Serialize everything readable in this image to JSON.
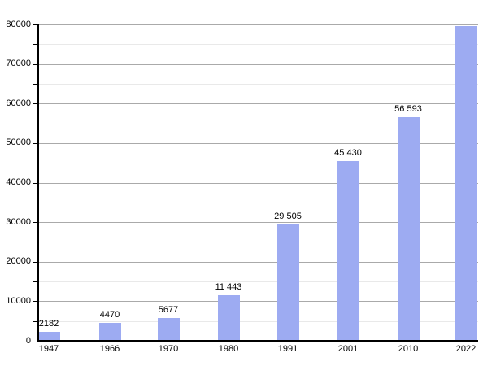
{
  "chart_data": {
    "type": "bar",
    "title": "",
    "xlabel": "",
    "ylabel": "",
    "categories": [
      "1947",
      "1966",
      "1970",
      "1980",
      "1991",
      "2001",
      "2010",
      "2022"
    ],
    "values": [
      2182,
      4470,
      5677,
      11443,
      29505,
      45430,
      56593,
      79500
    ],
    "bar_labels": [
      "2182",
      "4470",
      "5677",
      "11 443",
      "29 505",
      "45 430",
      "56 593",
      ""
    ],
    "ylim": [
      0,
      80000
    ],
    "y_major_step": 10000,
    "y_minor_step": 5000,
    "y_tick_labels": [
      "0",
      "10000",
      "20000",
      "30000",
      "40000",
      "50000",
      "60000",
      "70000",
      "80000"
    ],
    "grid": true,
    "legend": "none"
  },
  "colors": {
    "background": "#ffffff",
    "bar_fill": "#9dabf2",
    "axis": "#000000",
    "major_grid": "#aaaaaa",
    "minor_grid": "#e9e9e9",
    "label_text": "#000000"
  }
}
